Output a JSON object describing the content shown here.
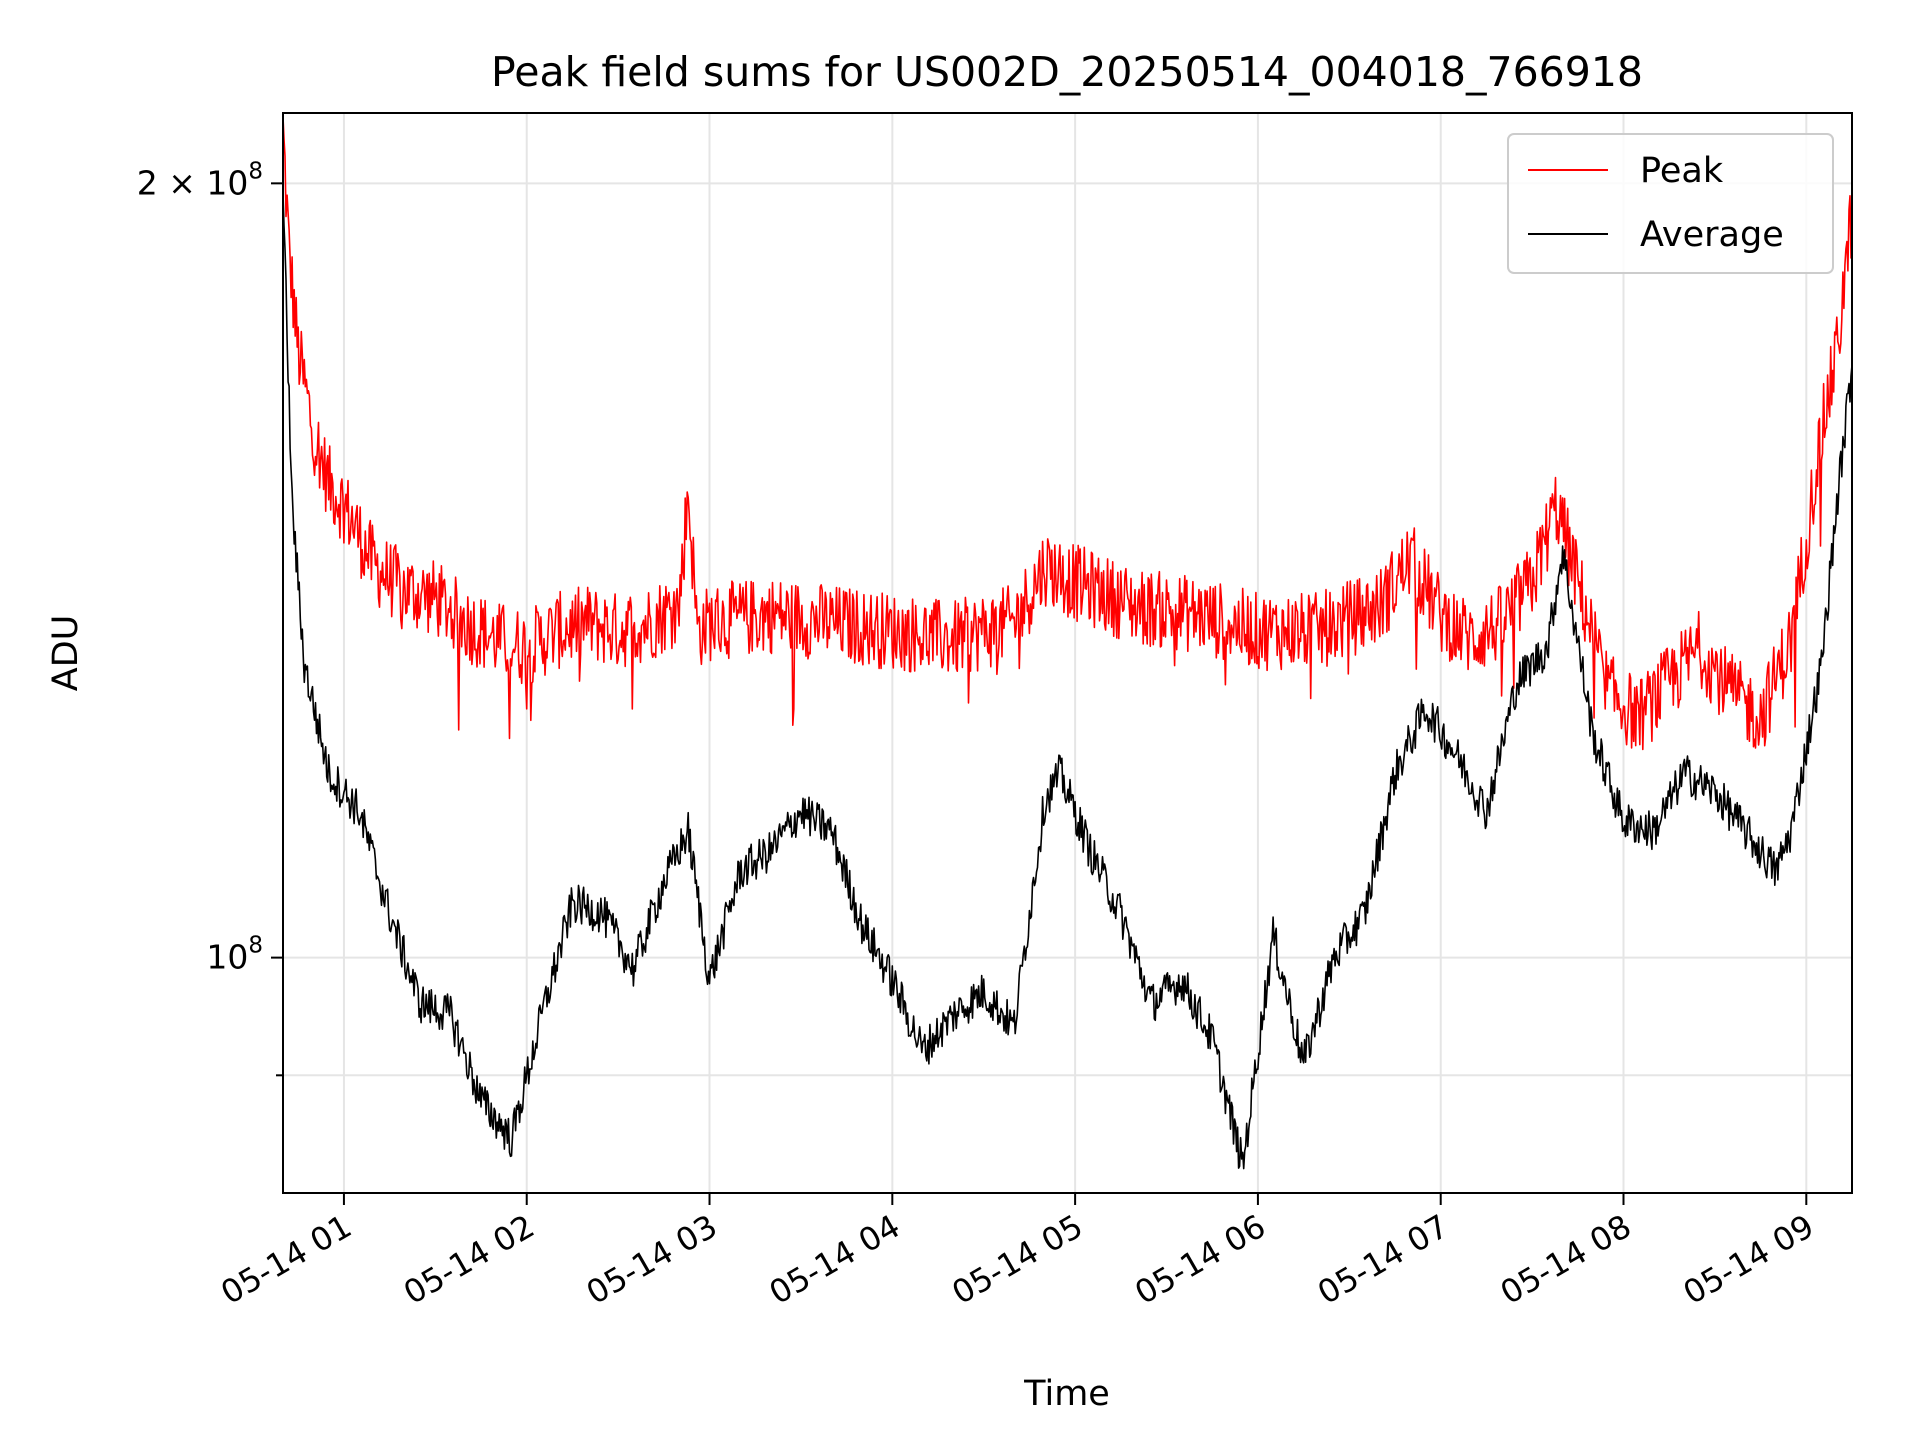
{
  "chart_data": {
    "type": "line",
    "title": "Peak field sums for US002D_20250514_004018_766918",
    "xlabel": "Time",
    "ylabel": "ADU",
    "yscale": "log",
    "xlim": [
      "2025-05-14 00:40",
      "2025-05-14 09:15"
    ],
    "ylim": [
      81000000,
      213000000
    ],
    "x_ticks": [
      "05-14 01",
      "05-14 02",
      "05-14 03",
      "05-14 04",
      "05-14 05",
      "05-14 06",
      "05-14 07",
      "05-14 08",
      "05-14 09"
    ],
    "y_tick_labels": [
      {
        "value": 200000000,
        "base": "2 × 10",
        "exp": "8"
      },
      {
        "value": 100000000,
        "base": "10",
        "exp": "8"
      }
    ],
    "y_minor_ticks": [
      90000000
    ],
    "grid": true,
    "legend_position": "top-right",
    "series": [
      {
        "name": "Peak",
        "color": "#ff0000",
        "points": [
          [
            "2025-05-14 00:40",
            210000000
          ],
          [
            "2025-05-14 00:42",
            188000000
          ],
          [
            "2025-05-14 00:45",
            172000000
          ],
          [
            "2025-05-14 00:50",
            160000000
          ],
          [
            "2025-05-14 00:55",
            153000000
          ],
          [
            "2025-05-14 01:00",
            150000000
          ],
          [
            "2025-05-14 01:05",
            146000000
          ],
          [
            "2025-05-14 01:10",
            142000000
          ],
          [
            "2025-05-14 01:20",
            139000000
          ],
          [
            "2025-05-14 01:30",
            138000000
          ],
          [
            "2025-05-14 01:40",
            135000000
          ],
          [
            "2025-05-14 01:50",
            133000000
          ],
          [
            "2025-05-14 02:00",
            132000000
          ],
          [
            "2025-05-14 02:10",
            134000000
          ],
          [
            "2025-05-14 02:20",
            135000000
          ],
          [
            "2025-05-14 02:30",
            134000000
          ],
          [
            "2025-05-14 02:40",
            135000000
          ],
          [
            "2025-05-14 02:50",
            137000000
          ],
          [
            "2025-05-14 02:53",
            152000000
          ],
          [
            "2025-05-14 02:56",
            134000000
          ],
          [
            "2025-05-14 03:00",
            135000000
          ],
          [
            "2025-05-14 03:20",
            136000000
          ],
          [
            "2025-05-14 03:40",
            135000000
          ],
          [
            "2025-05-14 04:00",
            134000000
          ],
          [
            "2025-05-14 04:20",
            133000000
          ],
          [
            "2025-05-14 04:40",
            135000000
          ],
          [
            "2025-05-14 04:50",
            142000000
          ],
          [
            "2025-05-14 05:00",
            140000000
          ],
          [
            "2025-05-14 05:20",
            137000000
          ],
          [
            "2025-05-14 05:40",
            136000000
          ],
          [
            "2025-05-14 06:00",
            134000000
          ],
          [
            "2025-05-14 06:20",
            134000000
          ],
          [
            "2025-05-14 06:40",
            137000000
          ],
          [
            "2025-05-14 06:50",
            143000000
          ],
          [
            "2025-05-14 07:00",
            136000000
          ],
          [
            "2025-05-14 07:10",
            133000000
          ],
          [
            "2025-05-14 07:20",
            135000000
          ],
          [
            "2025-05-14 07:30",
            140000000
          ],
          [
            "2025-05-14 07:38",
            150000000
          ],
          [
            "2025-05-14 07:45",
            140000000
          ],
          [
            "2025-05-14 07:55",
            127000000
          ],
          [
            "2025-05-14 08:05",
            124000000
          ],
          [
            "2025-05-14 08:15",
            128000000
          ],
          [
            "2025-05-14 08:25",
            132000000
          ],
          [
            "2025-05-14 08:35",
            127000000
          ],
          [
            "2025-05-14 08:45",
            124000000
          ],
          [
            "2025-05-14 08:55",
            133000000
          ],
          [
            "2025-05-14 09:05",
            160000000
          ],
          [
            "2025-05-14 09:10",
            172000000
          ],
          [
            "2025-05-14 09:15",
            195000000
          ]
        ]
      },
      {
        "name": "Average",
        "color": "#000000",
        "points": [
          [
            "2025-05-14 00:40",
            198000000
          ],
          [
            "2025-05-14 00:43",
            150000000
          ],
          [
            "2025-05-14 00:47",
            130000000
          ],
          [
            "2025-05-14 00:55",
            118000000
          ],
          [
            "2025-05-14 01:05",
            114000000
          ],
          [
            "2025-05-14 01:15",
            104000000
          ],
          [
            "2025-05-14 01:25",
            96000000
          ],
          [
            "2025-05-14 01:35",
            95000000
          ],
          [
            "2025-05-14 01:45",
            88000000
          ],
          [
            "2025-05-14 01:55",
            85000000
          ],
          [
            "2025-05-14 02:05",
            95000000
          ],
          [
            "2025-05-14 02:15",
            105000000
          ],
          [
            "2025-05-14 02:25",
            104000000
          ],
          [
            "2025-05-14 02:35",
            99000000
          ],
          [
            "2025-05-14 02:45",
            107000000
          ],
          [
            "2025-05-14 02:53",
            112000000
          ],
          [
            "2025-05-14 03:00",
            98000000
          ],
          [
            "2025-05-14 03:10",
            108000000
          ],
          [
            "2025-05-14 03:20",
            110000000
          ],
          [
            "2025-05-14 03:30",
            114000000
          ],
          [
            "2025-05-14 03:40",
            112000000
          ],
          [
            "2025-05-14 03:50",
            103000000
          ],
          [
            "2025-05-14 04:00",
            98000000
          ],
          [
            "2025-05-14 04:10",
            92000000
          ],
          [
            "2025-05-14 04:20",
            95000000
          ],
          [
            "2025-05-14 04:30",
            97000000
          ],
          [
            "2025-05-14 04:40",
            94000000
          ],
          [
            "2025-05-14 04:50",
            115000000
          ],
          [
            "2025-05-14 04:55",
            118000000
          ],
          [
            "2025-05-14 05:05",
            110000000
          ],
          [
            "2025-05-14 05:15",
            104000000
          ],
          [
            "2025-05-14 05:25",
            96000000
          ],
          [
            "2025-05-14 05:35",
            98000000
          ],
          [
            "2025-05-14 05:45",
            93000000
          ],
          [
            "2025-05-14 05:55",
            83000000
          ],
          [
            "2025-05-14 06:05",
            102000000
          ],
          [
            "2025-05-14 06:15",
            91000000
          ],
          [
            "2025-05-14 06:25",
            100000000
          ],
          [
            "2025-05-14 06:35",
            104000000
          ],
          [
            "2025-05-14 06:45",
            118000000
          ],
          [
            "2025-05-14 06:55",
            125000000
          ],
          [
            "2025-05-14 07:05",
            120000000
          ],
          [
            "2025-05-14 07:15",
            114000000
          ],
          [
            "2025-05-14 07:25",
            128000000
          ],
          [
            "2025-05-14 07:35",
            132000000
          ],
          [
            "2025-05-14 07:40",
            144000000
          ],
          [
            "2025-05-14 07:50",
            122000000
          ],
          [
            "2025-05-14 08:00",
            113000000
          ],
          [
            "2025-05-14 08:10",
            112000000
          ],
          [
            "2025-05-14 08:20",
            118000000
          ],
          [
            "2025-05-14 08:30",
            116000000
          ],
          [
            "2025-05-14 08:40",
            112000000
          ],
          [
            "2025-05-14 08:50",
            108000000
          ],
          [
            "2025-05-14 08:55",
            112000000
          ],
          [
            "2025-05-14 09:05",
            130000000
          ],
          [
            "2025-05-14 09:10",
            150000000
          ],
          [
            "2025-05-14 09:15",
            170000000
          ]
        ]
      }
    ]
  }
}
